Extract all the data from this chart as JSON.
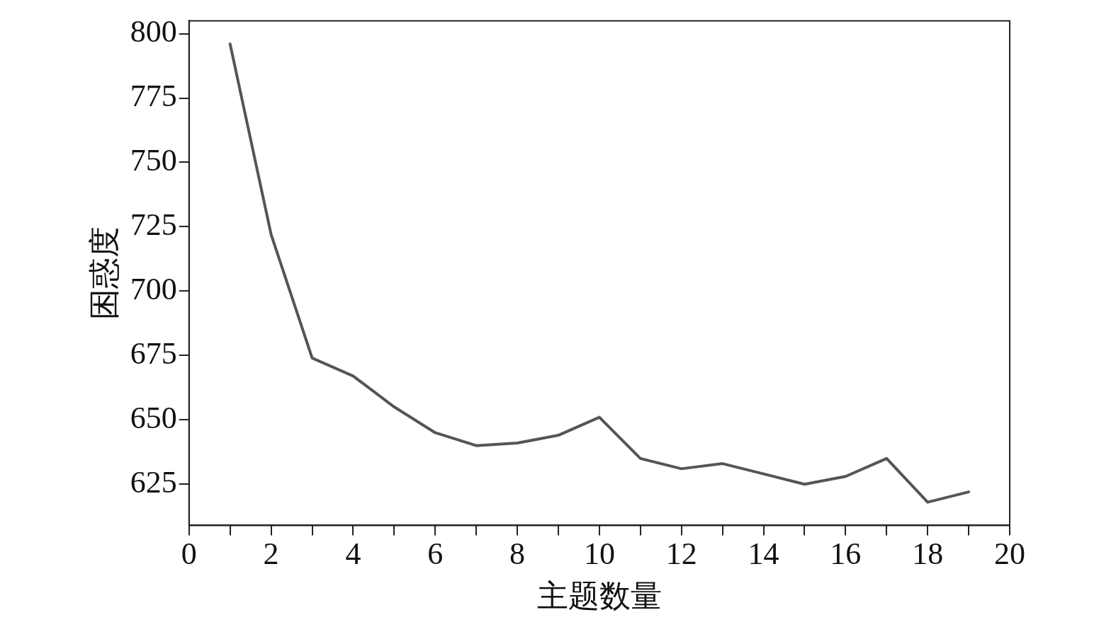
{
  "chart_data": {
    "type": "line",
    "xlabel": "主题数量",
    "ylabel": "困惑度",
    "x": [
      1,
      2,
      3,
      4,
      5,
      6,
      7,
      8,
      9,
      10,
      11,
      12,
      13,
      14,
      15,
      16,
      17,
      18,
      19
    ],
    "series": [
      {
        "color": "#555555",
        "values": [
          796,
          722,
          674,
          667,
          655,
          645,
          640,
          641,
          644,
          651,
          635,
          631,
          633,
          629,
          625,
          628,
          635,
          618,
          622
        ]
      }
    ],
    "xlim": [
      0,
      20
    ],
    "ylim": [
      609,
      805
    ],
    "xticks": [
      0,
      {
        "value": 1,
        "label": null
      },
      2,
      {
        "value": 3,
        "label": null
      },
      4,
      {
        "value": 5,
        "label": null
      },
      6,
      {
        "value": 7,
        "label": null
      },
      8,
      {
        "value": 9,
        "label": null
      },
      10,
      {
        "value": 11,
        "label": null
      },
      12,
      {
        "value": 13,
        "label": null
      },
      14,
      {
        "value": 15,
        "label": null
      },
      16,
      {
        "value": 17,
        "label": null
      },
      18,
      {
        "value": 19,
        "label": null
      },
      20
    ],
    "yticks": [
      625,
      650,
      675,
      700,
      725,
      750,
      775,
      800
    ],
    "grid": false,
    "legend": false,
    "marker": "none",
    "line_style": "solid"
  }
}
